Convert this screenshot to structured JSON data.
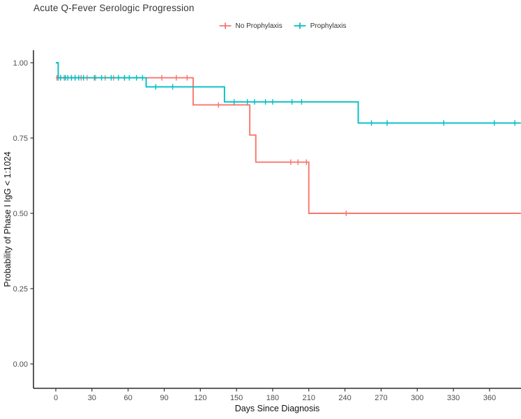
{
  "title": "Acute Q-Fever Serologic Progression",
  "legend": {
    "items": [
      {
        "label": "No Prophylaxis",
        "color": "#F8766D"
      },
      {
        "label": "Prophylaxis",
        "color": "#00BFC4"
      }
    ]
  },
  "chart_data": {
    "type": "line",
    "subtype": "kaplan-meier-step-curve",
    "title": "Acute Q-Fever Serologic Progression",
    "xlabel": "Days Since Diagnosis",
    "ylabel": "Probability of Phase I IgG < 1:1024",
    "x_ticks": [
      0,
      30,
      60,
      90,
      120,
      150,
      180,
      210,
      240,
      270,
      300,
      330,
      360
    ],
    "y_ticks": [
      0.0,
      0.25,
      0.5,
      0.75,
      1.0
    ],
    "y_tick_labels": [
      "0.00",
      "0.25",
      "0.50",
      "0.75",
      "1.00"
    ],
    "xlim": [
      -18,
      386
    ],
    "ylim": [
      -0.08,
      1.04
    ],
    "x_end": 386,
    "grid": false,
    "legend_position": "top-center",
    "axis_color": "#000000",
    "tick_text_color": "#4d4d4d",
    "series": [
      {
        "name": "No Prophylaxis",
        "color": "#F8766D",
        "steps": [
          [
            0,
            0.95
          ],
          [
            114,
            0.86
          ],
          [
            161,
            0.76
          ],
          [
            166,
            0.67
          ],
          [
            210,
            0.5
          ]
        ],
        "censor_days": [
          1,
          4,
          7,
          10,
          13,
          16,
          21,
          26,
          33,
          41,
          48,
          57,
          88,
          100,
          109,
          135,
          195,
          201,
          208,
          241
        ]
      },
      {
        "name": "Prophylaxis",
        "color": "#00BFC4",
        "steps": [
          [
            0,
            1.0
          ],
          [
            2,
            0.95
          ],
          [
            75,
            0.92
          ],
          [
            140,
            0.87
          ],
          [
            251,
            0.8
          ]
        ],
        "censor_days": [
          2,
          4,
          8,
          10,
          13,
          16,
          19,
          23,
          32,
          38,
          46,
          52,
          57,
          61,
          67,
          72,
          83,
          97,
          148,
          159,
          165,
          174,
          180,
          196,
          204,
          262,
          275,
          322,
          364,
          381
        ]
      }
    ]
  }
}
